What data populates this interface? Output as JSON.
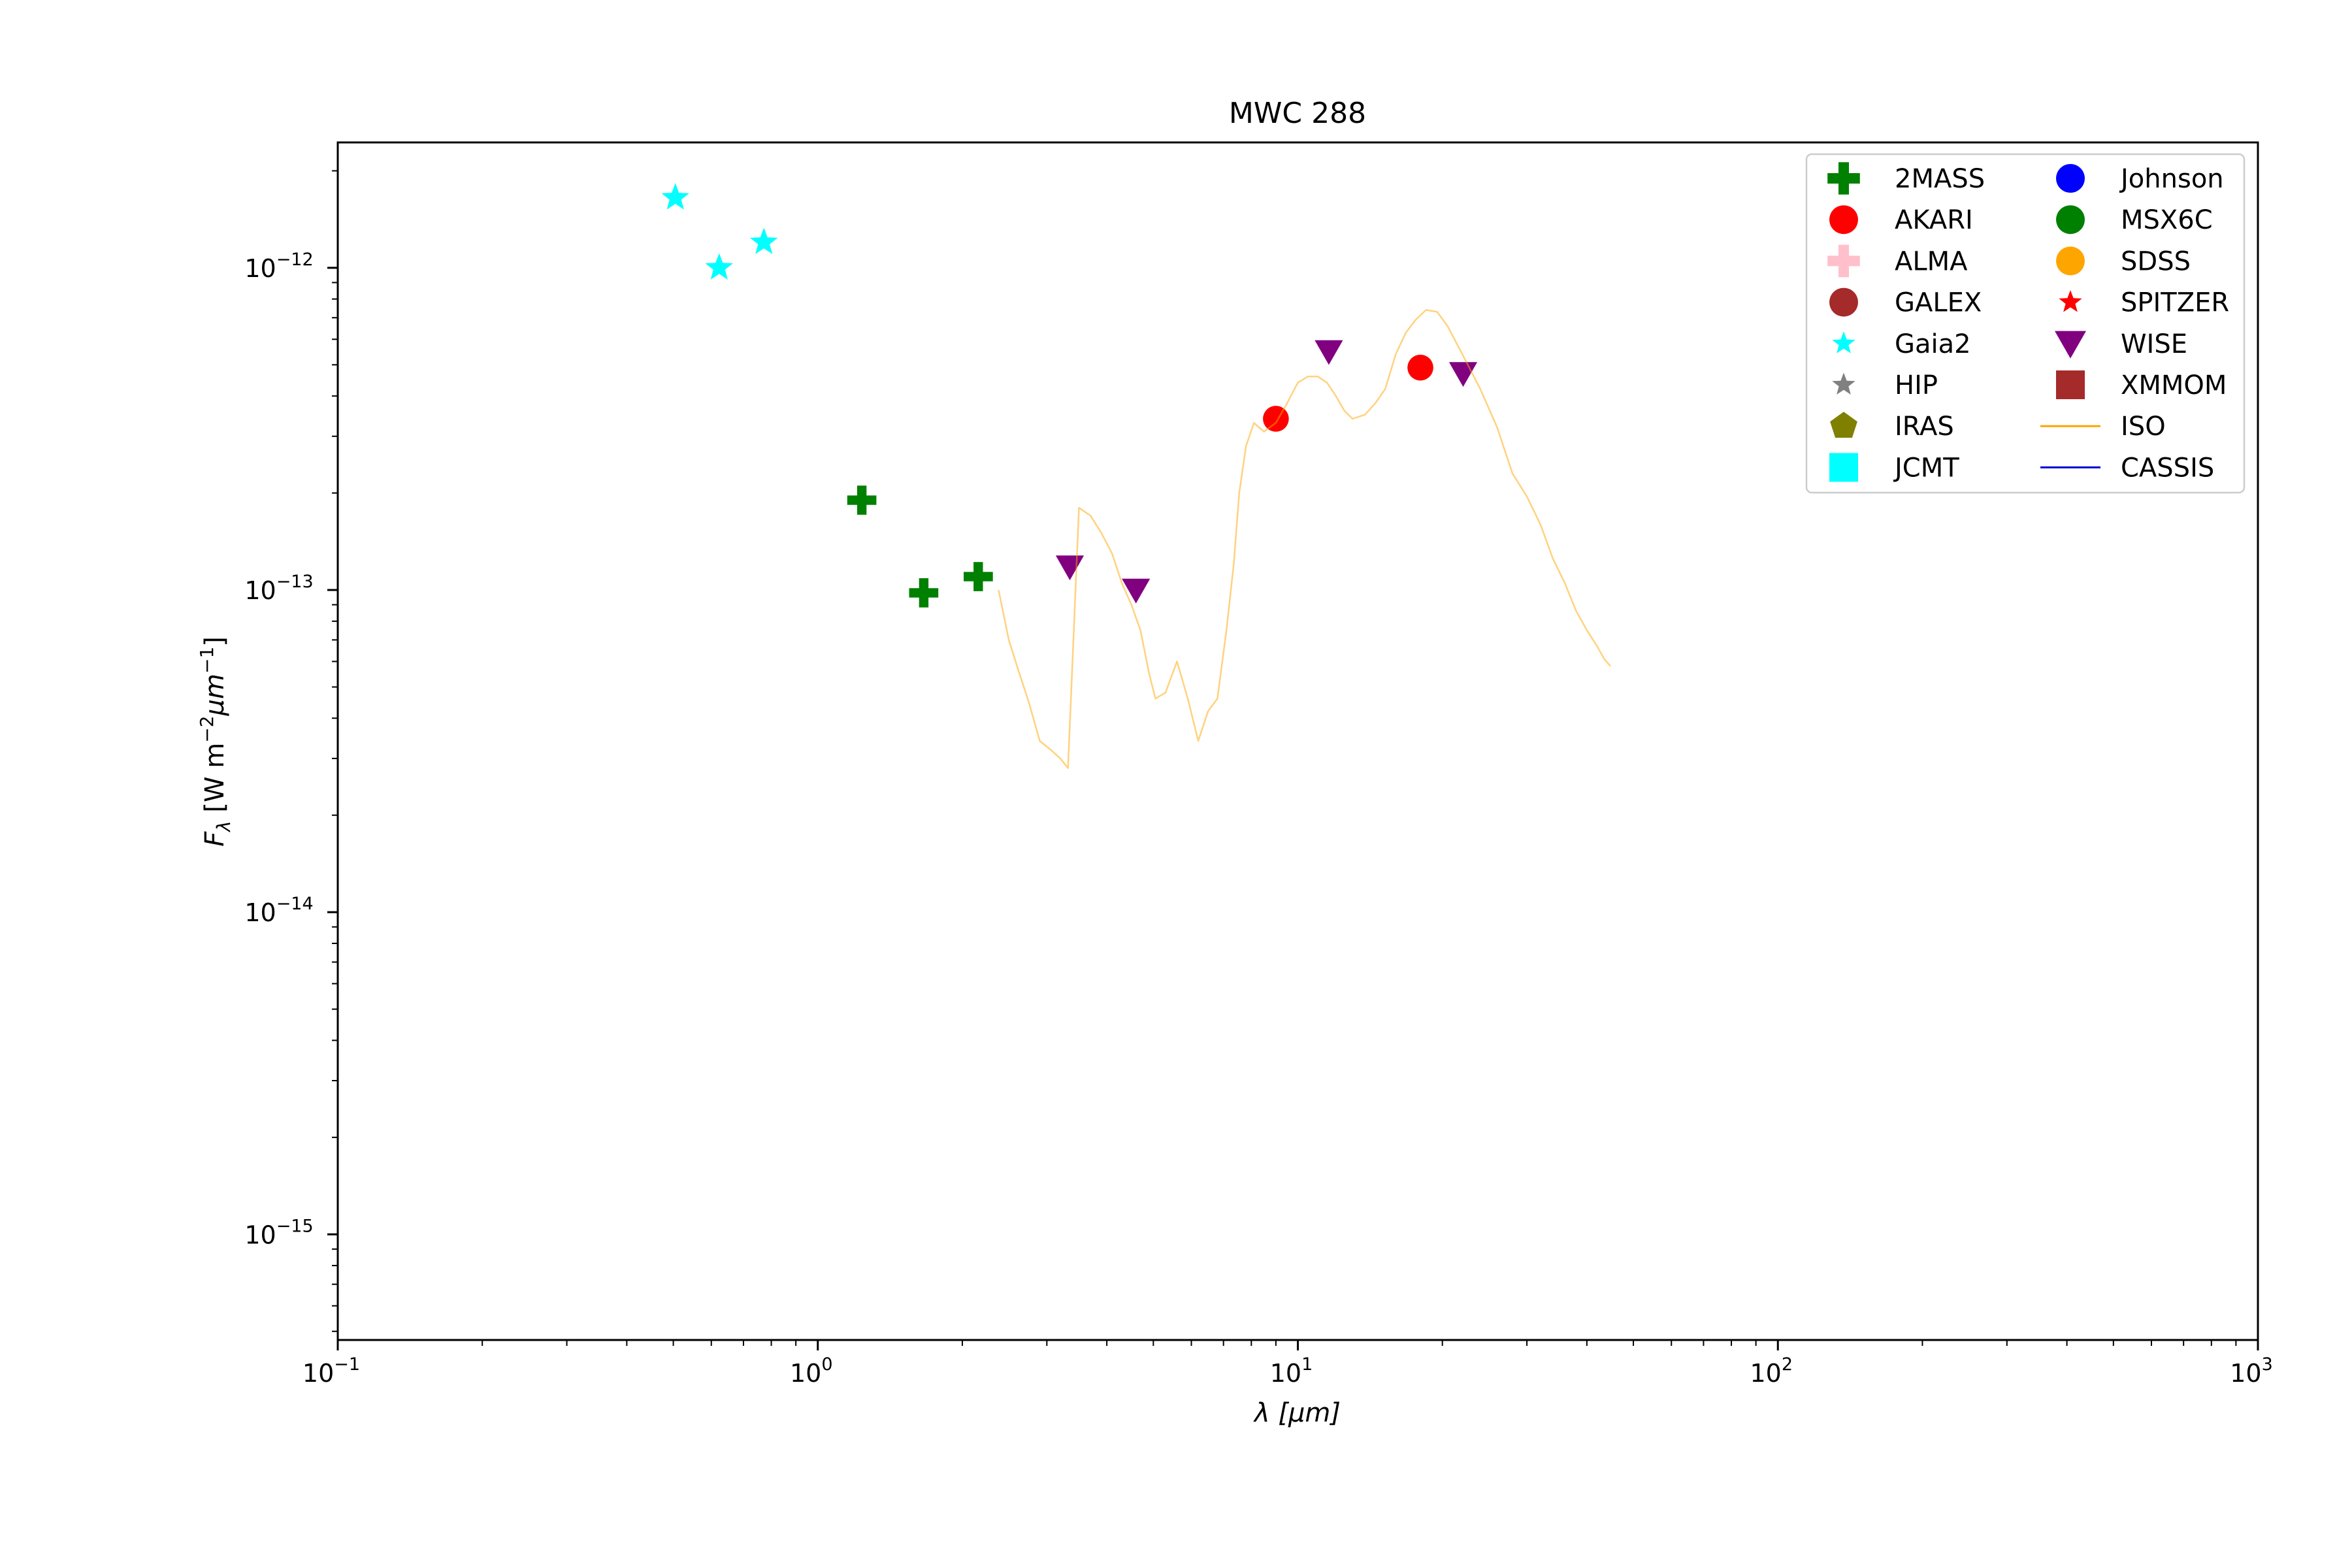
{
  "chart_data": {
    "type": "scatter",
    "title": "MWC 288",
    "xlabel": "λ [μm]",
    "ylabel": "F_λ [W m^-2 μm^-1]",
    "x_scale": "log",
    "y_scale": "log",
    "xlim": [
      0.1,
      1000
    ],
    "ylim": [
      4.7e-16,
      2.45e-12
    ],
    "x_ticks": [
      {
        "value": 0.1,
        "base": "10",
        "exp": "−1"
      },
      {
        "value": 1,
        "base": "10",
        "exp": "0"
      },
      {
        "value": 10,
        "base": "10",
        "exp": "1"
      },
      {
        "value": 100,
        "base": "10",
        "exp": "2"
      },
      {
        "value": 1000,
        "base": "10",
        "exp": "3"
      }
    ],
    "y_ticks": [
      {
        "value": 1e-15,
        "base": "10",
        "exp": "−15"
      },
      {
        "value": 1e-14,
        "base": "10",
        "exp": "−14"
      },
      {
        "value": 1e-13,
        "base": "10",
        "exp": "−13"
      },
      {
        "value": 1e-12,
        "base": "10",
        "exp": "−12"
      }
    ],
    "grid": false,
    "legend_position": "top-right",
    "series": [
      {
        "name": "2MASS",
        "marker": "plus",
        "color": "#008000",
        "points": [
          [
            1.235,
            1.9e-13
          ],
          [
            1.662,
            9.8e-14
          ],
          [
            2.159,
            1.1e-13
          ]
        ]
      },
      {
        "name": "AKARI",
        "marker": "circle",
        "color": "#ff0000",
        "points": [
          [
            9.0,
            3.4e-13
          ],
          [
            18.0,
            4.9e-13
          ]
        ]
      },
      {
        "name": "ALMA",
        "marker": "plus",
        "color": "#ffc0cb",
        "points": []
      },
      {
        "name": "GALEX",
        "marker": "circle",
        "color": "#a52a2a",
        "points": []
      },
      {
        "name": "Gaia2",
        "marker": "star",
        "color": "#00ffff",
        "points": [
          [
            0.505,
            1.65e-12
          ],
          [
            0.623,
            1e-12
          ],
          [
            0.772,
            1.2e-12
          ]
        ]
      },
      {
        "name": "HIP",
        "marker": "star",
        "color": "#808080",
        "points": []
      },
      {
        "name": "IRAS",
        "marker": "pentagon",
        "color": "#808000",
        "points": []
      },
      {
        "name": "JCMT",
        "marker": "square",
        "color": "#00ffff",
        "points": []
      },
      {
        "name": "Johnson",
        "marker": "circle",
        "color": "#0000ff",
        "points": []
      },
      {
        "name": "MSX6C",
        "marker": "circle",
        "color": "#008000",
        "points": []
      },
      {
        "name": "SDSS",
        "marker": "circle",
        "color": "#ffa500",
        "points": []
      },
      {
        "name": "SPITZER",
        "marker": "star",
        "color": "#ff0000",
        "points": []
      },
      {
        "name": "WISE",
        "marker": "triangle-down",
        "color": "#800080",
        "points": [
          [
            3.35,
            1.18e-13
          ],
          [
            4.6,
            1e-13
          ],
          [
            11.6,
            5.5e-13
          ],
          [
            22.1,
            4.7e-13
          ]
        ]
      },
      {
        "name": "XMMOM",
        "marker": "square",
        "color": "#a52a2a",
        "points": []
      },
      {
        "name": "ISO",
        "marker": "line",
        "color": "#ffa500",
        "points": [
          [
            2.38,
            1e-13
          ],
          [
            2.5,
            7e-14
          ],
          [
            2.6,
            5.8e-14
          ],
          [
            2.75,
            4.5e-14
          ],
          [
            2.9,
            3.4e-14
          ],
          [
            3.05,
            3.2e-14
          ],
          [
            3.2,
            3e-14
          ],
          [
            3.32,
            2.8e-14
          ],
          [
            3.5,
            1.8e-13
          ],
          [
            3.7,
            1.7e-13
          ],
          [
            3.9,
            1.5e-13
          ],
          [
            4.1,
            1.3e-13
          ],
          [
            4.3,
            1.05e-13
          ],
          [
            4.5,
            9e-14
          ],
          [
            4.7,
            7.5e-14
          ],
          [
            4.9,
            5.5e-14
          ],
          [
            5.05,
            4.6e-14
          ],
          [
            5.3,
            4.8e-14
          ],
          [
            5.6,
            6e-14
          ],
          [
            5.9,
            4.6e-14
          ],
          [
            6.2,
            3.4e-14
          ],
          [
            6.5,
            4.2e-14
          ],
          [
            6.8,
            4.6e-14
          ],
          [
            7.1,
            7.5e-14
          ],
          [
            7.35,
            1.2e-13
          ],
          [
            7.55,
            2e-13
          ],
          [
            7.8,
            2.8e-13
          ],
          [
            8.1,
            3.3e-13
          ],
          [
            8.5,
            3.1e-13
          ],
          [
            9.0,
            3.3e-13
          ],
          [
            9.5,
            3.8e-13
          ],
          [
            10.0,
            4.4e-13
          ],
          [
            10.5,
            4.6e-13
          ],
          [
            11.0,
            4.6e-13
          ],
          [
            11.5,
            4.4e-13
          ],
          [
            12.0,
            4e-13
          ],
          [
            12.5,
            3.6e-13
          ],
          [
            13.0,
            3.4e-13
          ],
          [
            13.8,
            3.5e-13
          ],
          [
            14.5,
            3.8e-13
          ],
          [
            15.2,
            4.2e-13
          ],
          [
            16.0,
            5.4e-13
          ],
          [
            16.8,
            6.3e-13
          ],
          [
            17.6,
            6.9e-13
          ],
          [
            18.5,
            7.4e-13
          ],
          [
            19.5,
            7.3e-13
          ],
          [
            20.5,
            6.6e-13
          ],
          [
            22.0,
            5.4e-13
          ],
          [
            24.0,
            4.2e-13
          ],
          [
            26.0,
            3.2e-13
          ],
          [
            28.0,
            2.3e-13
          ],
          [
            30.0,
            1.95e-13
          ],
          [
            32.0,
            1.6e-13
          ],
          [
            34.0,
            1.25e-13
          ],
          [
            36.0,
            1.05e-13
          ],
          [
            38.0,
            8.6e-14
          ],
          [
            40.0,
            7.5e-14
          ],
          [
            42.0,
            6.7e-14
          ],
          [
            43.5,
            6.1e-14
          ],
          [
            44.8,
            5.8e-14
          ]
        ]
      },
      {
        "name": "CASSIS",
        "marker": "line",
        "color": "#0000cd",
        "points": []
      }
    ]
  }
}
